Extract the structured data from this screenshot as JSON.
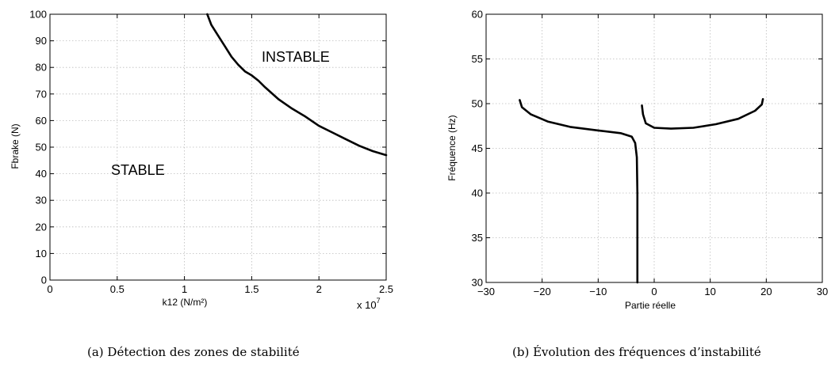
{
  "chart_data": [
    {
      "type": "line",
      "xlabel": "k12 (N/m²)",
      "ylabel": "Fbrake (N)",
      "x_exponent_label": "x 10",
      "x_exponent_power": "7",
      "xlim": [
        0,
        2.5
      ],
      "ylim": [
        0,
        100
      ],
      "xticks": [
        0,
        0.5,
        1,
        1.5,
        2,
        2.5
      ],
      "yticks": [
        0,
        10,
        20,
        30,
        40,
        50,
        60,
        70,
        80,
        90,
        100
      ],
      "xtick_labels": [
        "0",
        "0.5",
        "1",
        "1.5",
        "2",
        "2.5"
      ],
      "ytick_labels": [
        "0",
        "10",
        "20",
        "30",
        "40",
        "50",
        "60",
        "70",
        "80",
        "90",
        "100"
      ],
      "grid": true,
      "annotations": [
        "INSTABLE",
        "STABLE"
      ],
      "series": [
        {
          "x": [
            1.17,
            1.2,
            1.25,
            1.3,
            1.35,
            1.4,
            1.45,
            1.5,
            1.55,
            1.6,
            1.7,
            1.8,
            1.9,
            2.0,
            2.1,
            2.2,
            2.3,
            2.4,
            2.5
          ],
          "y": [
            100,
            96,
            92,
            88,
            84,
            81,
            78.5,
            77,
            75,
            72.5,
            68,
            64.5,
            61.5,
            58,
            55.5,
            53,
            50.5,
            48.5,
            47
          ]
        }
      ]
    },
    {
      "type": "line",
      "xlabel": "Partie réelle",
      "ylabel": "Fréquence (Hz)",
      "xlim": [
        -30,
        30
      ],
      "ylim": [
        30,
        60
      ],
      "xticks": [
        -30,
        -20,
        -10,
        0,
        10,
        20,
        30
      ],
      "yticks": [
        30,
        35,
        40,
        45,
        50,
        55,
        60
      ],
      "xtick_labels": [
        "−30",
        "−20",
        "−10",
        "0",
        "10",
        "20",
        "30"
      ],
      "ytick_labels": [
        "30",
        "35",
        "40",
        "45",
        "50",
        "55",
        "60"
      ],
      "grid": true,
      "series": [
        {
          "x": [
            -24,
            -23.6,
            -22,
            -19,
            -15,
            -10,
            -6,
            -4,
            -3.4,
            -3.1,
            -3.0,
            -3.0,
            -3.0
          ],
          "y": [
            50.4,
            49.6,
            48.8,
            48.0,
            47.4,
            47.0,
            46.7,
            46.3,
            45.6,
            44.0,
            40.0,
            35.0,
            30.0
          ]
        },
        {
          "x": [
            -2.2,
            -2.0,
            -1.5,
            0,
            3,
            7,
            11,
            15,
            18,
            19.2,
            19.4
          ],
          "y": [
            49.8,
            48.8,
            47.8,
            47.3,
            47.2,
            47.3,
            47.7,
            48.3,
            49.2,
            49.9,
            50.5
          ]
        }
      ]
    }
  ],
  "captions": {
    "a": "(a) Détection des zones de stabilité",
    "b": "(b) Évolution des fréquences d’instabilité"
  }
}
